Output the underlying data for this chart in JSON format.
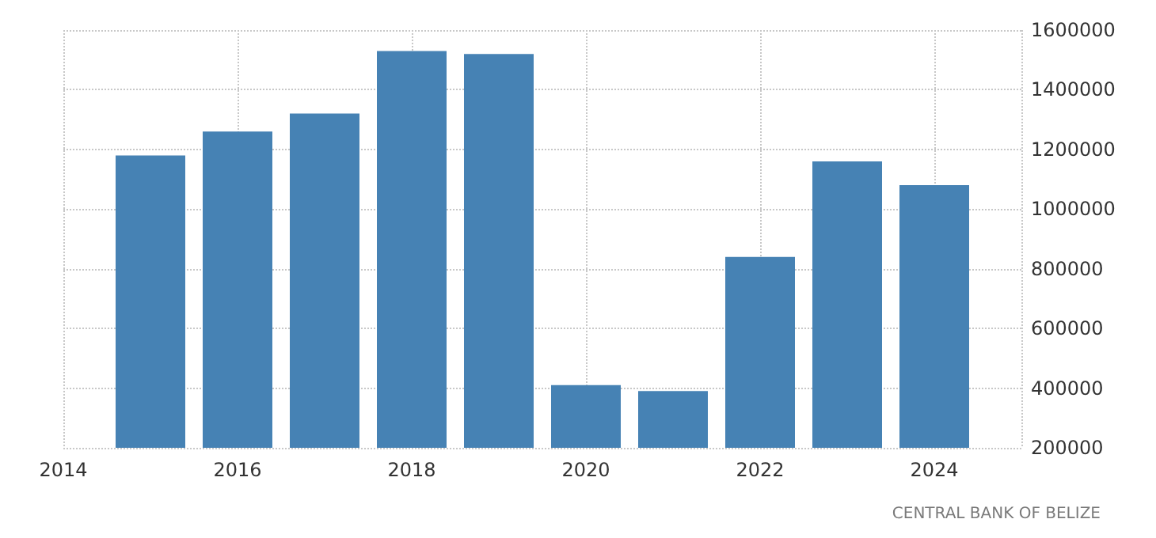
{
  "chart_data": {
    "type": "bar",
    "x": [
      2015,
      2016,
      2017,
      2018,
      2019,
      2020,
      2021,
      2022,
      2023,
      2024
    ],
    "values": [
      1180000,
      1260000,
      1320000,
      1530000,
      1520000,
      410000,
      390000,
      840000,
      1160000,
      1080000
    ],
    "color": "#4682b4",
    "xlim": [
      2014,
      2025
    ],
    "xticks": [
      2014,
      2016,
      2018,
      2020,
      2022,
      2024
    ],
    "ylim": [
      200000,
      1600000
    ],
    "yticks": [
      200000,
      400000,
      600000,
      800000,
      1000000,
      1200000,
      1400000,
      1600000
    ],
    "grid": true,
    "annotations": [
      "CENTRAL BANK OF BELIZE"
    ]
  }
}
